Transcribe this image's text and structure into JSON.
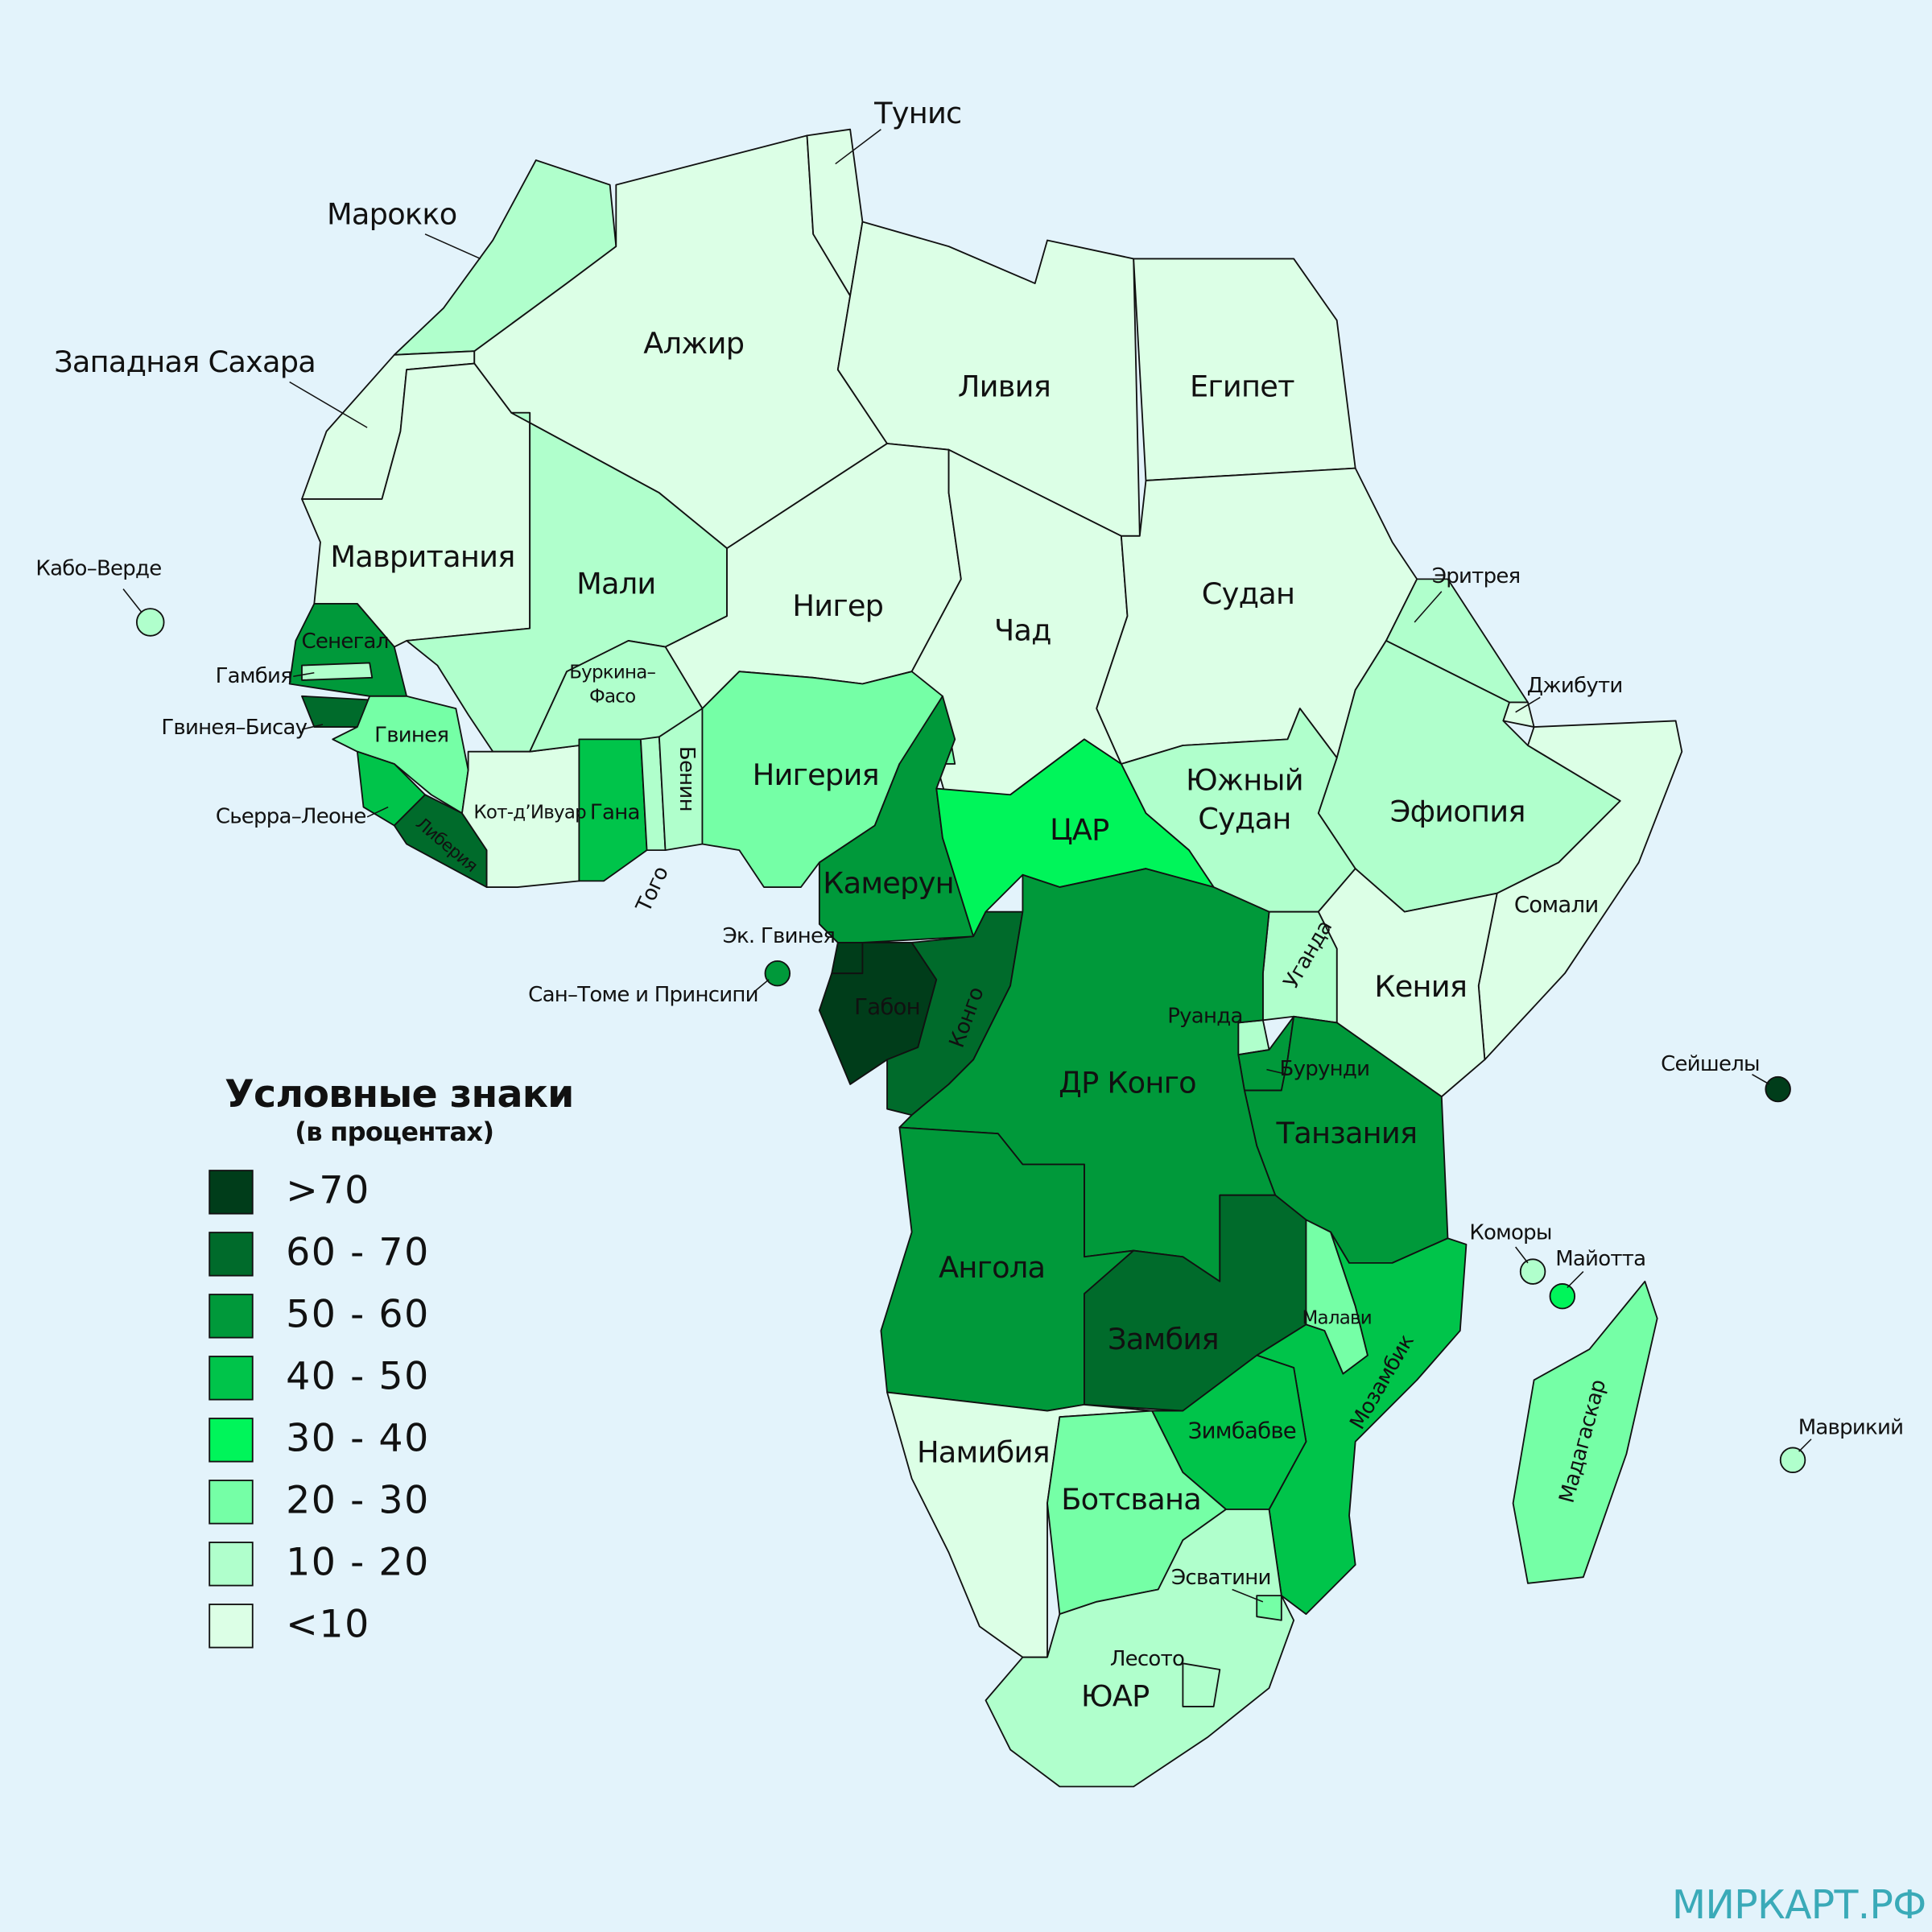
{
  "title": "Условные знаки",
  "subtitle": "(в процентах)",
  "legend": [
    {
      "label": ">70",
      "color": "#003d1a"
    },
    {
      "label": "60 - 70",
      "color": "#006b2b"
    },
    {
      "label": "50 - 60",
      "color": "#00993a"
    },
    {
      "label": "40 - 50",
      "color": "#00c44a"
    },
    {
      "label": "30 - 40",
      "color": "#00f55a"
    },
    {
      "label": "20 - 30",
      "color": "#75ffa6"
    },
    {
      "label": "10 - 20",
      "color": "#b0ffcc"
    },
    {
      "label": "<10",
      "color": "#dcffe6"
    }
  ],
  "countries": [
    {
      "name": "Марокко",
      "class": "10 - 20"
    },
    {
      "name": "Западная Сахара",
      "class": "<10"
    },
    {
      "name": "Алжир",
      "class": "<10"
    },
    {
      "name": "Тунис",
      "class": "<10"
    },
    {
      "name": "Ливия",
      "class": "<10"
    },
    {
      "name": "Египет",
      "class": "<10"
    },
    {
      "name": "Мавритания",
      "class": "<10"
    },
    {
      "name": "Мали",
      "class": "10 - 20"
    },
    {
      "name": "Нигер",
      "class": "<10"
    },
    {
      "name": "Чад",
      "class": "<10"
    },
    {
      "name": "Судан",
      "class": "<10"
    },
    {
      "name": "Эритрея",
      "class": "10 - 20"
    },
    {
      "name": "Джибути",
      "class": "<10"
    },
    {
      "name": "Эфиопия",
      "class": "10 - 20"
    },
    {
      "name": "Сомали",
      "class": "<10"
    },
    {
      "name": [
        "Южный",
        "Судан"
      ],
      "class": "10 - 20"
    },
    {
      "name": "Кения",
      "class": "<10"
    },
    {
      "name": "Уганда",
      "class": "10 - 20"
    },
    {
      "name": "Руанда",
      "class": "10 - 20"
    },
    {
      "name": "Бурунди",
      "class": "50 - 60"
    },
    {
      "name": "Танзания",
      "class": "50 - 60"
    },
    {
      "name": "Сенегал",
      "class": "50 - 60"
    },
    {
      "name": "Гамбия",
      "class": "10 - 20"
    },
    {
      "name": "Гвинея–Бисау",
      "class": "60 - 70"
    },
    {
      "name": "Гвинея",
      "class": "20 - 30"
    },
    {
      "name": "Сьерра–Леоне",
      "class": "40 - 50"
    },
    {
      "name": "Либерия",
      "class": "60 - 70"
    },
    {
      "name": "Кот-д’Ивуар",
      "class": "<10"
    },
    {
      "name": [
        "Буркина–",
        "Фасо"
      ],
      "class": "10 - 20"
    },
    {
      "name": "Гана",
      "class": "40 - 50"
    },
    {
      "name": "Того",
      "class": "10 - 20"
    },
    {
      "name": "Бенин",
      "class": "10 - 20"
    },
    {
      "name": "Нигерия",
      "class": "20 - 30"
    },
    {
      "name": "Камерун",
      "class": "50 - 60"
    },
    {
      "name": "ЦАР",
      "class": "30 - 40"
    },
    {
      "name": "Эк. Гвинея",
      "class": ">70"
    },
    {
      "name": "Габон",
      "class": ">70"
    },
    {
      "name": "Конго",
      "class": "60 - 70"
    },
    {
      "name": "ДР Конго",
      "class": "50 - 60"
    },
    {
      "name": "Ангола",
      "class": "50 - 60"
    },
    {
      "name": "Замбия",
      "class": "60 - 70"
    },
    {
      "name": "Малави",
      "class": "20 - 30"
    },
    {
      "name": "Мозамбик",
      "class": "40 - 50"
    },
    {
      "name": "Зимбабве",
      "class": "40 - 50"
    },
    {
      "name": "Намибия",
      "class": "<10"
    },
    {
      "name": "Ботсвана",
      "class": "20 - 30"
    },
    {
      "name": "ЮАР",
      "class": "10 - 20"
    },
    {
      "name": "Эсватини",
      "class": "20 - 30"
    },
    {
      "name": "Лесото",
      "class": "10 - 20"
    },
    {
      "name": "Мадагаскар",
      "class": "20 - 30"
    },
    {
      "name": "Кабо–Верде",
      "class": "10 - 20"
    },
    {
      "name": "Сан–Томе и Принсипи",
      "class": "50 - 60"
    },
    {
      "name": "Сейшелы",
      "class": ">70"
    },
    {
      "name": "Коморы",
      "class": "10 - 20"
    },
    {
      "name": "Майотта",
      "class": "30 - 40"
    },
    {
      "name": "Маврикий",
      "class": "10 - 20"
    }
  ],
  "watermark": "МИРКАРТ.РФ"
}
